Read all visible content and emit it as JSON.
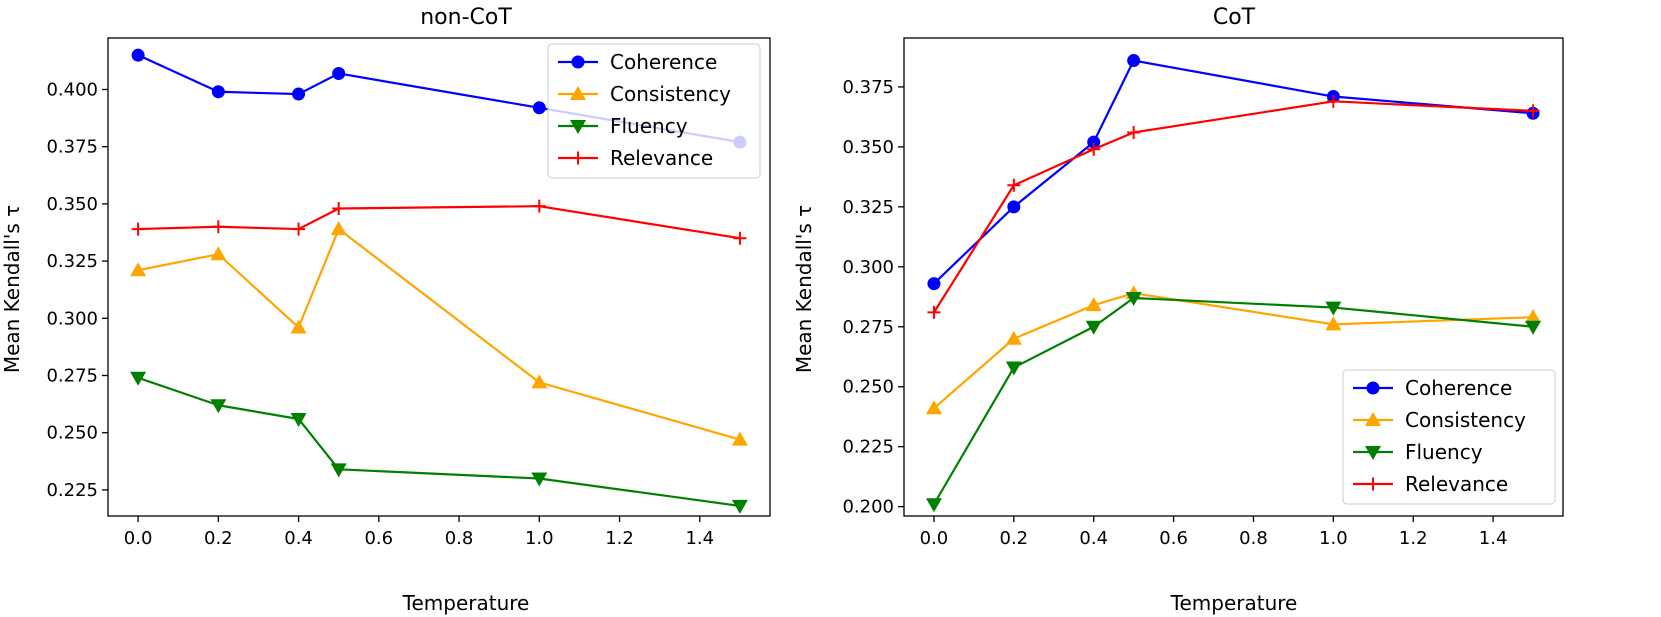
{
  "colors": {
    "Coherence": "#0000ff",
    "Consistency": "#ffa500",
    "Fluency": "#008000",
    "Relevance": "#ff0000"
  },
  "markers": {
    "Coherence": "circle",
    "Consistency": "triangle-up",
    "Fluency": "triangle-down",
    "Relevance": "plus"
  },
  "chart_data": [
    {
      "type": "line",
      "title": "non-CoT",
      "xlabel": "Temperature",
      "ylabel": "Mean Kendall's τ",
      "x": [
        0.0,
        0.2,
        0.4,
        0.5,
        1.0,
        1.5
      ],
      "xlim": [
        -0.075,
        1.575
      ],
      "ylim": [
        0.2136,
        0.4225
      ],
      "xticks": [
        "0.0",
        "0.2",
        "0.4",
        "0.6",
        "0.8",
        "1.0",
        "1.2",
        "1.4"
      ],
      "yticks": [
        "0.225",
        "0.250",
        "0.275",
        "0.300",
        "0.325",
        "0.350",
        "0.375",
        "0.400"
      ],
      "legend_position": "top-right",
      "grid": false,
      "series": [
        {
          "name": "Coherence",
          "values": [
            0.415,
            0.399,
            0.398,
            0.407,
            0.392,
            0.377
          ]
        },
        {
          "name": "Consistency",
          "values": [
            0.321,
            0.328,
            0.296,
            0.339,
            0.272,
            0.247
          ]
        },
        {
          "name": "Fluency",
          "values": [
            0.274,
            0.262,
            0.256,
            0.234,
            0.23,
            0.218
          ]
        },
        {
          "name": "Relevance",
          "values": [
            0.339,
            0.34,
            0.339,
            0.348,
            0.349,
            0.335
          ]
        }
      ]
    },
    {
      "type": "line",
      "title": "CoT",
      "xlabel": "Temperature",
      "ylabel": "Mean Kendall's τ",
      "x": [
        0.0,
        0.2,
        0.4,
        0.5,
        1.0,
        1.5
      ],
      "xlim": [
        -0.075,
        1.575
      ],
      "ylim": [
        0.1961,
        0.3954
      ],
      "xticks": [
        "0.0",
        "0.2",
        "0.4",
        "0.6",
        "0.8",
        "1.0",
        "1.2",
        "1.4"
      ],
      "yticks": [
        "0.200",
        "0.225",
        "0.250",
        "0.275",
        "0.300",
        "0.325",
        "0.350",
        "0.375"
      ],
      "legend_position": "bottom-right",
      "grid": false,
      "series": [
        {
          "name": "Coherence",
          "values": [
            0.293,
            0.325,
            0.352,
            0.386,
            0.371,
            0.364
          ]
        },
        {
          "name": "Consistency",
          "values": [
            0.241,
            0.27,
            0.284,
            0.289,
            0.276,
            0.279
          ]
        },
        {
          "name": "Fluency",
          "values": [
            0.201,
            0.258,
            0.275,
            0.287,
            0.283,
            0.275
          ]
        },
        {
          "name": "Relevance",
          "values": [
            0.281,
            0.334,
            0.349,
            0.356,
            0.369,
            0.365
          ]
        }
      ]
    }
  ]
}
